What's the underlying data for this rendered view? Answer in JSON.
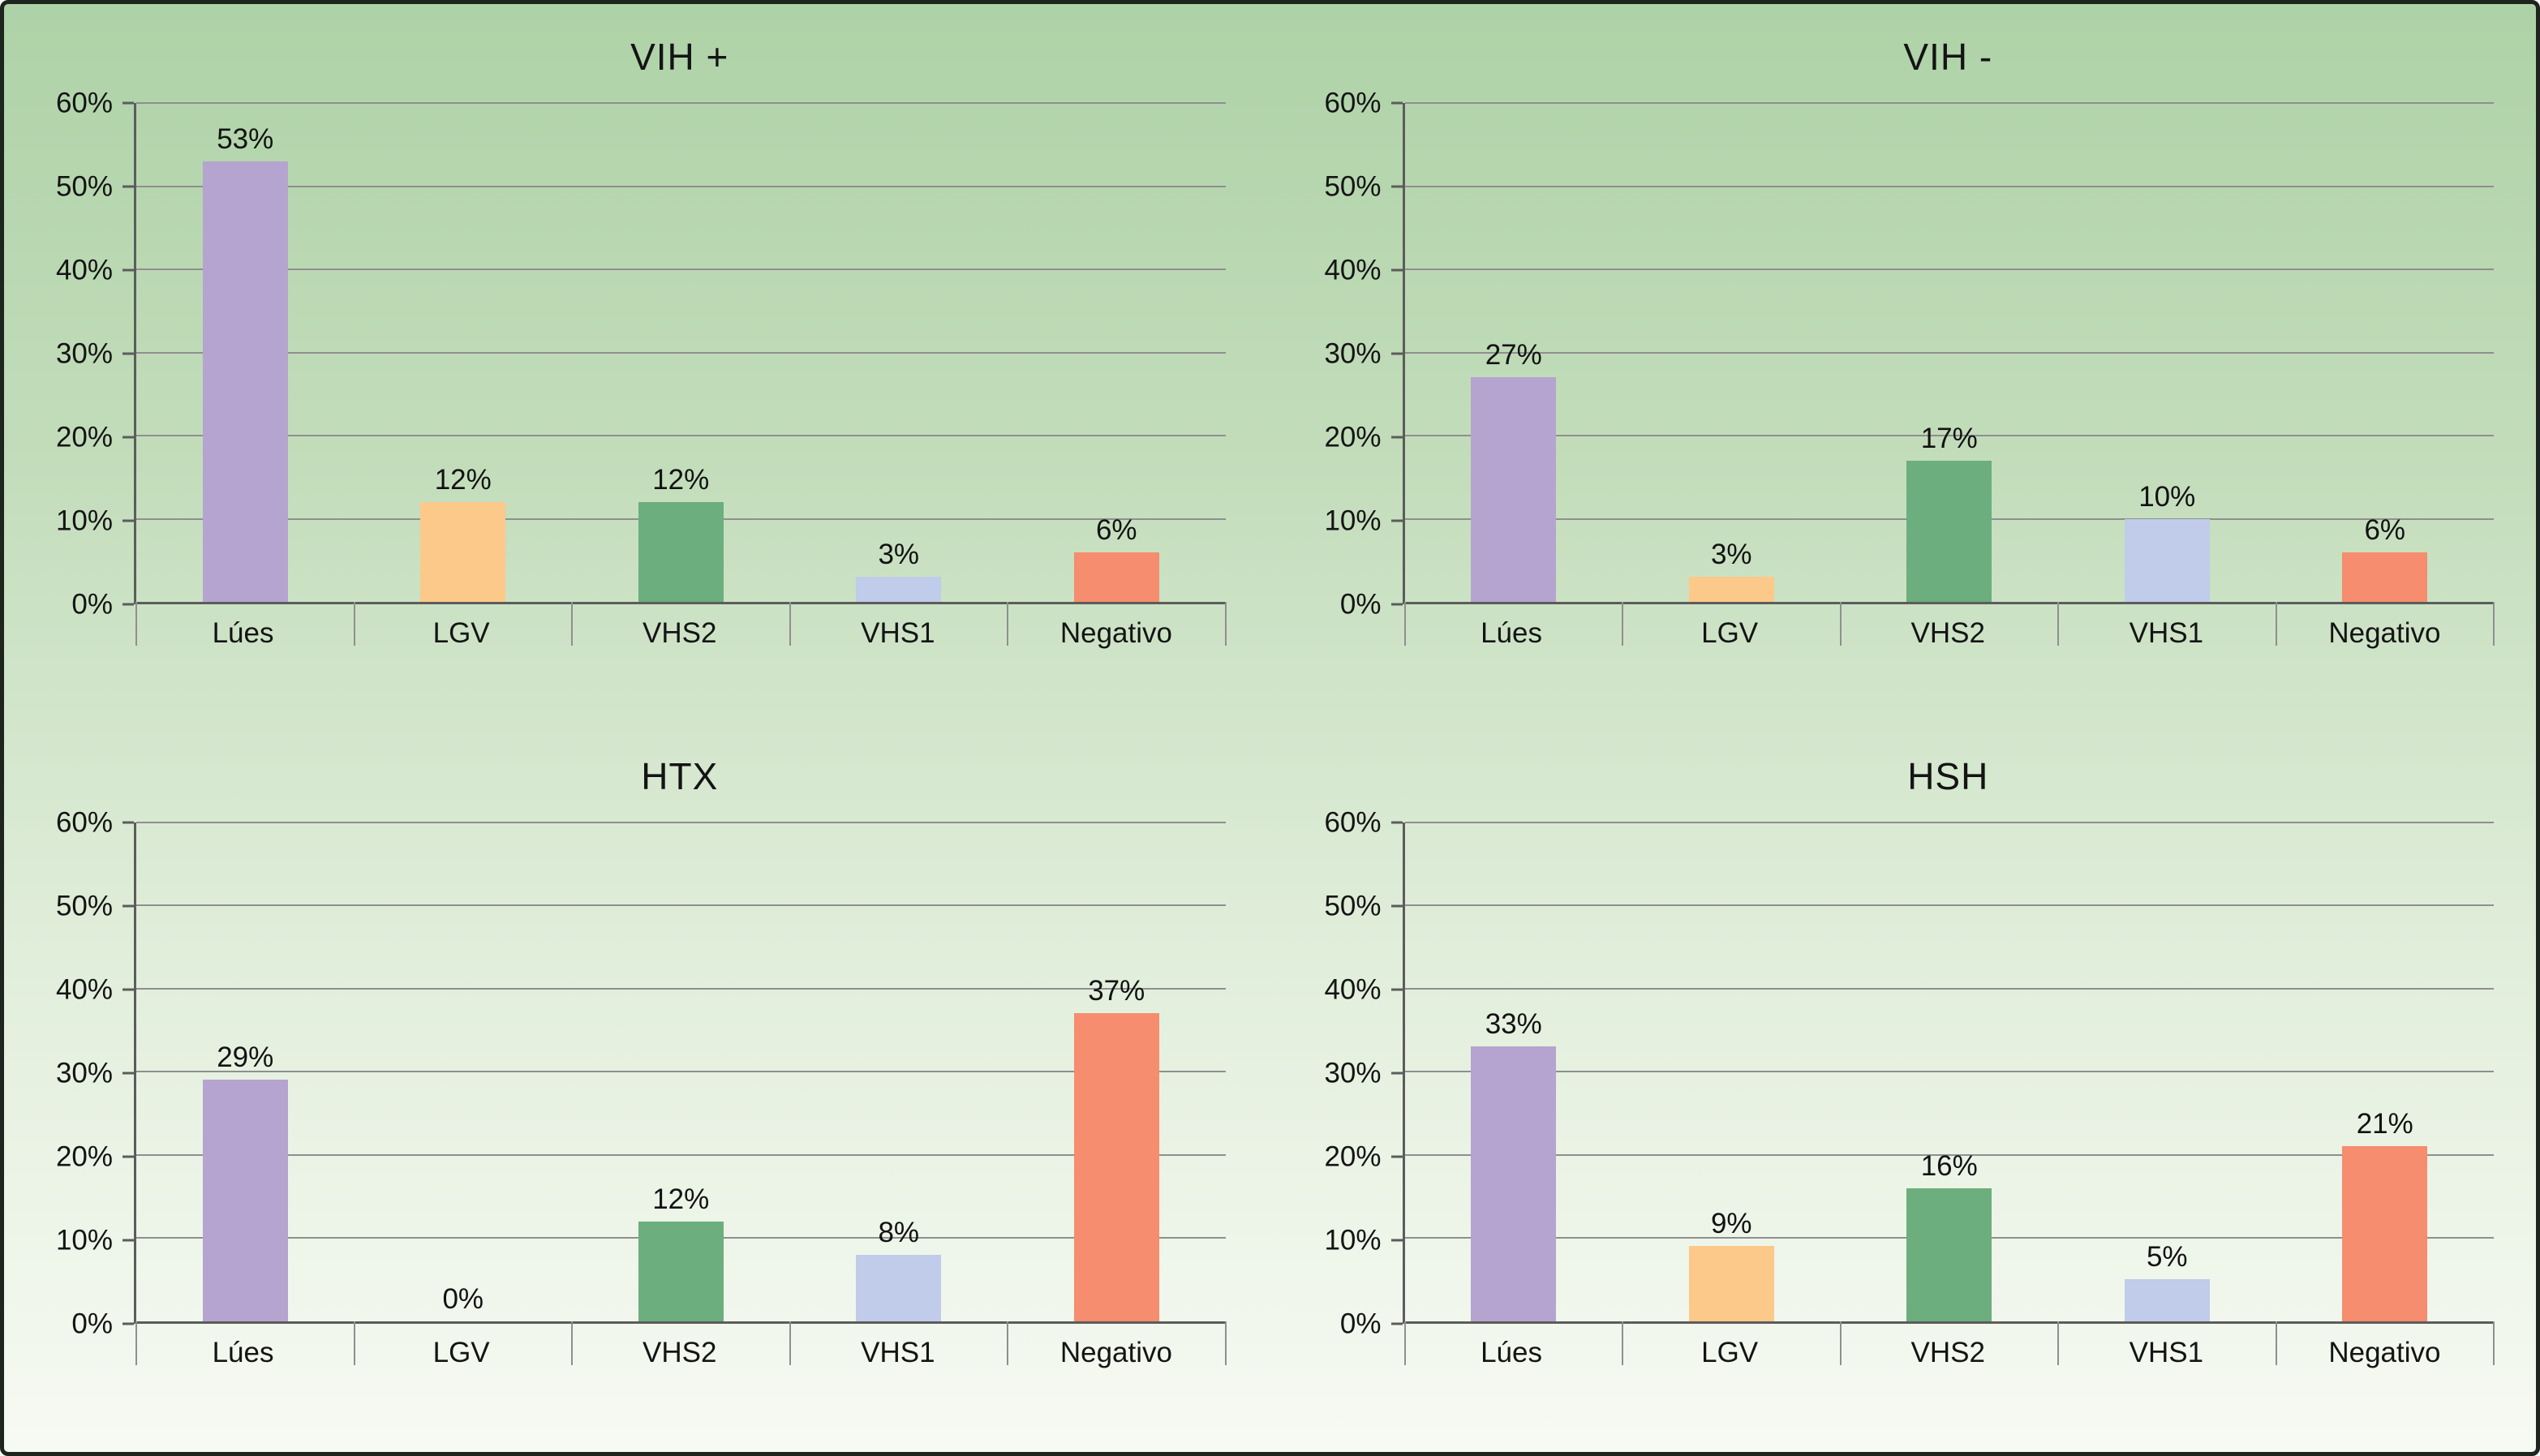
{
  "chart_data": [
    {
      "type": "bar",
      "title": "VIH +",
      "categories": [
        "Lúes",
        "LGV",
        "VHS2",
        "VHS1",
        "Negativo"
      ],
      "values": [
        53,
        12,
        12,
        3,
        6
      ],
      "value_labels": [
        "53%",
        "12%",
        "12%",
        "3%",
        "6%"
      ],
      "xlabel": "",
      "ylabel": "",
      "ylim": [
        0,
        60
      ],
      "yticks": [
        "0%",
        "10%",
        "20%",
        "30%",
        "40%",
        "50%",
        "60%"
      ],
      "grid": true,
      "legend": false
    },
    {
      "type": "bar",
      "title": "VIH -",
      "categories": [
        "Lúes",
        "LGV",
        "VHS2",
        "VHS1",
        "Negativo"
      ],
      "values": [
        27,
        3,
        17,
        10,
        6
      ],
      "value_labels": [
        "27%",
        "3%",
        "17%",
        "10%",
        "6%"
      ],
      "xlabel": "",
      "ylabel": "",
      "ylim": [
        0,
        60
      ],
      "yticks": [
        "0%",
        "10%",
        "20%",
        "30%",
        "40%",
        "50%",
        "60%"
      ],
      "grid": true,
      "legend": false
    },
    {
      "type": "bar",
      "title": "HTX",
      "categories": [
        "Lúes",
        "LGV",
        "VHS2",
        "VHS1",
        "Negativo"
      ],
      "values": [
        29,
        0,
        12,
        8,
        37
      ],
      "value_labels": [
        "29%",
        "0%",
        "12%",
        "8%",
        "37%"
      ],
      "xlabel": "",
      "ylabel": "",
      "ylim": [
        0,
        60
      ],
      "yticks": [
        "0%",
        "10%",
        "20%",
        "30%",
        "40%",
        "50%",
        "60%"
      ],
      "grid": true,
      "legend": false
    },
    {
      "type": "bar",
      "title": "HSH",
      "categories": [
        "Lúes",
        "LGV",
        "VHS2",
        "VHS1",
        "Negativo"
      ],
      "values": [
        33,
        9,
        16,
        5,
        21
      ],
      "value_labels": [
        "33%",
        "9%",
        "16%",
        "5%",
        "21%"
      ],
      "xlabel": "",
      "ylabel": "",
      "ylim": [
        0,
        60
      ],
      "yticks": [
        "0%",
        "10%",
        "20%",
        "30%",
        "40%",
        "50%",
        "60%"
      ],
      "grid": true,
      "legend": false
    }
  ],
  "style": {
    "bar_colors": [
      "#b5a4cf",
      "#fcc98b",
      "#6cae7d",
      "#c0cce9",
      "#f58d6e"
    ],
    "background_top": "#aed2a7",
    "background_bottom": "#f7faf3",
    "axis_color": "#5c5c5c",
    "grid_color": "#8f8f8f",
    "text_color": "#141414",
    "border_color": "#1e241e"
  },
  "layout": {
    "grid_rows": 2,
    "grid_cols": 2
  }
}
